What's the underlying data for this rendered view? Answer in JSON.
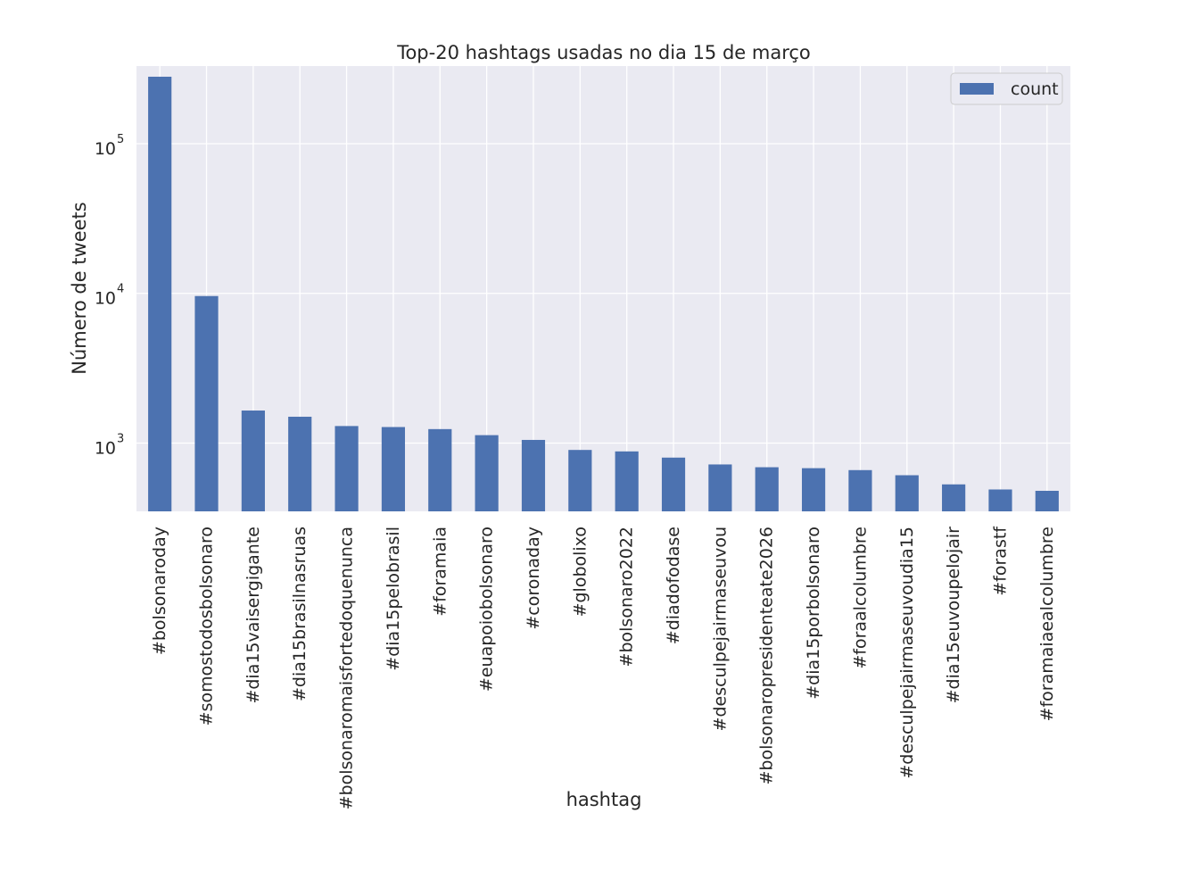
{
  "chart_data": {
    "type": "bar",
    "title": "Top-20 hashtags usadas no dia 15 de março",
    "xlabel": "hashtag",
    "ylabel": "Número de tweets",
    "yscale": "log",
    "ylim": [
      350,
      330000
    ],
    "yticks": [
      {
        "value": 1000,
        "base": "10",
        "exp": "3"
      },
      {
        "value": 10000,
        "base": "10",
        "exp": "4"
      },
      {
        "value": 100000,
        "base": "10",
        "exp": "5"
      }
    ],
    "grid": true,
    "legend": {
      "position": "top-right"
    },
    "colors": {
      "bar": "#4c72b0",
      "plot_bg": "#eaeaf2",
      "grid": "#ffffff",
      "text": "#262626"
    },
    "categories": [
      "#bolsonaroday",
      "#somostodosbolsonaro",
      "#dia15vaisergigante",
      "#dia15brasilnasruas",
      "#bolsonaromaisfortedoquenunca",
      "#dia15pelobrasil",
      "#foramaia",
      "#euapoiobolsonaro",
      "#coronaday",
      "#globolixo",
      "#bolsonaro2022",
      "#diadofodase",
      "#desculpejairmaseuvou",
      "#bolsonaropresidenteate2026",
      "#dia15porbolsonaro",
      "#foraalcolumbre",
      "#desculpejairmaseuvoudia15",
      "#dia15euvoupelojair",
      "#forastf",
      "#foramaiaealcolumbre"
    ],
    "series": [
      {
        "name": "count",
        "values": [
          280000,
          9600,
          1650,
          1500,
          1300,
          1280,
          1240,
          1130,
          1050,
          900,
          880,
          800,
          720,
          690,
          680,
          660,
          610,
          530,
          490,
          480
        ]
      }
    ]
  }
}
